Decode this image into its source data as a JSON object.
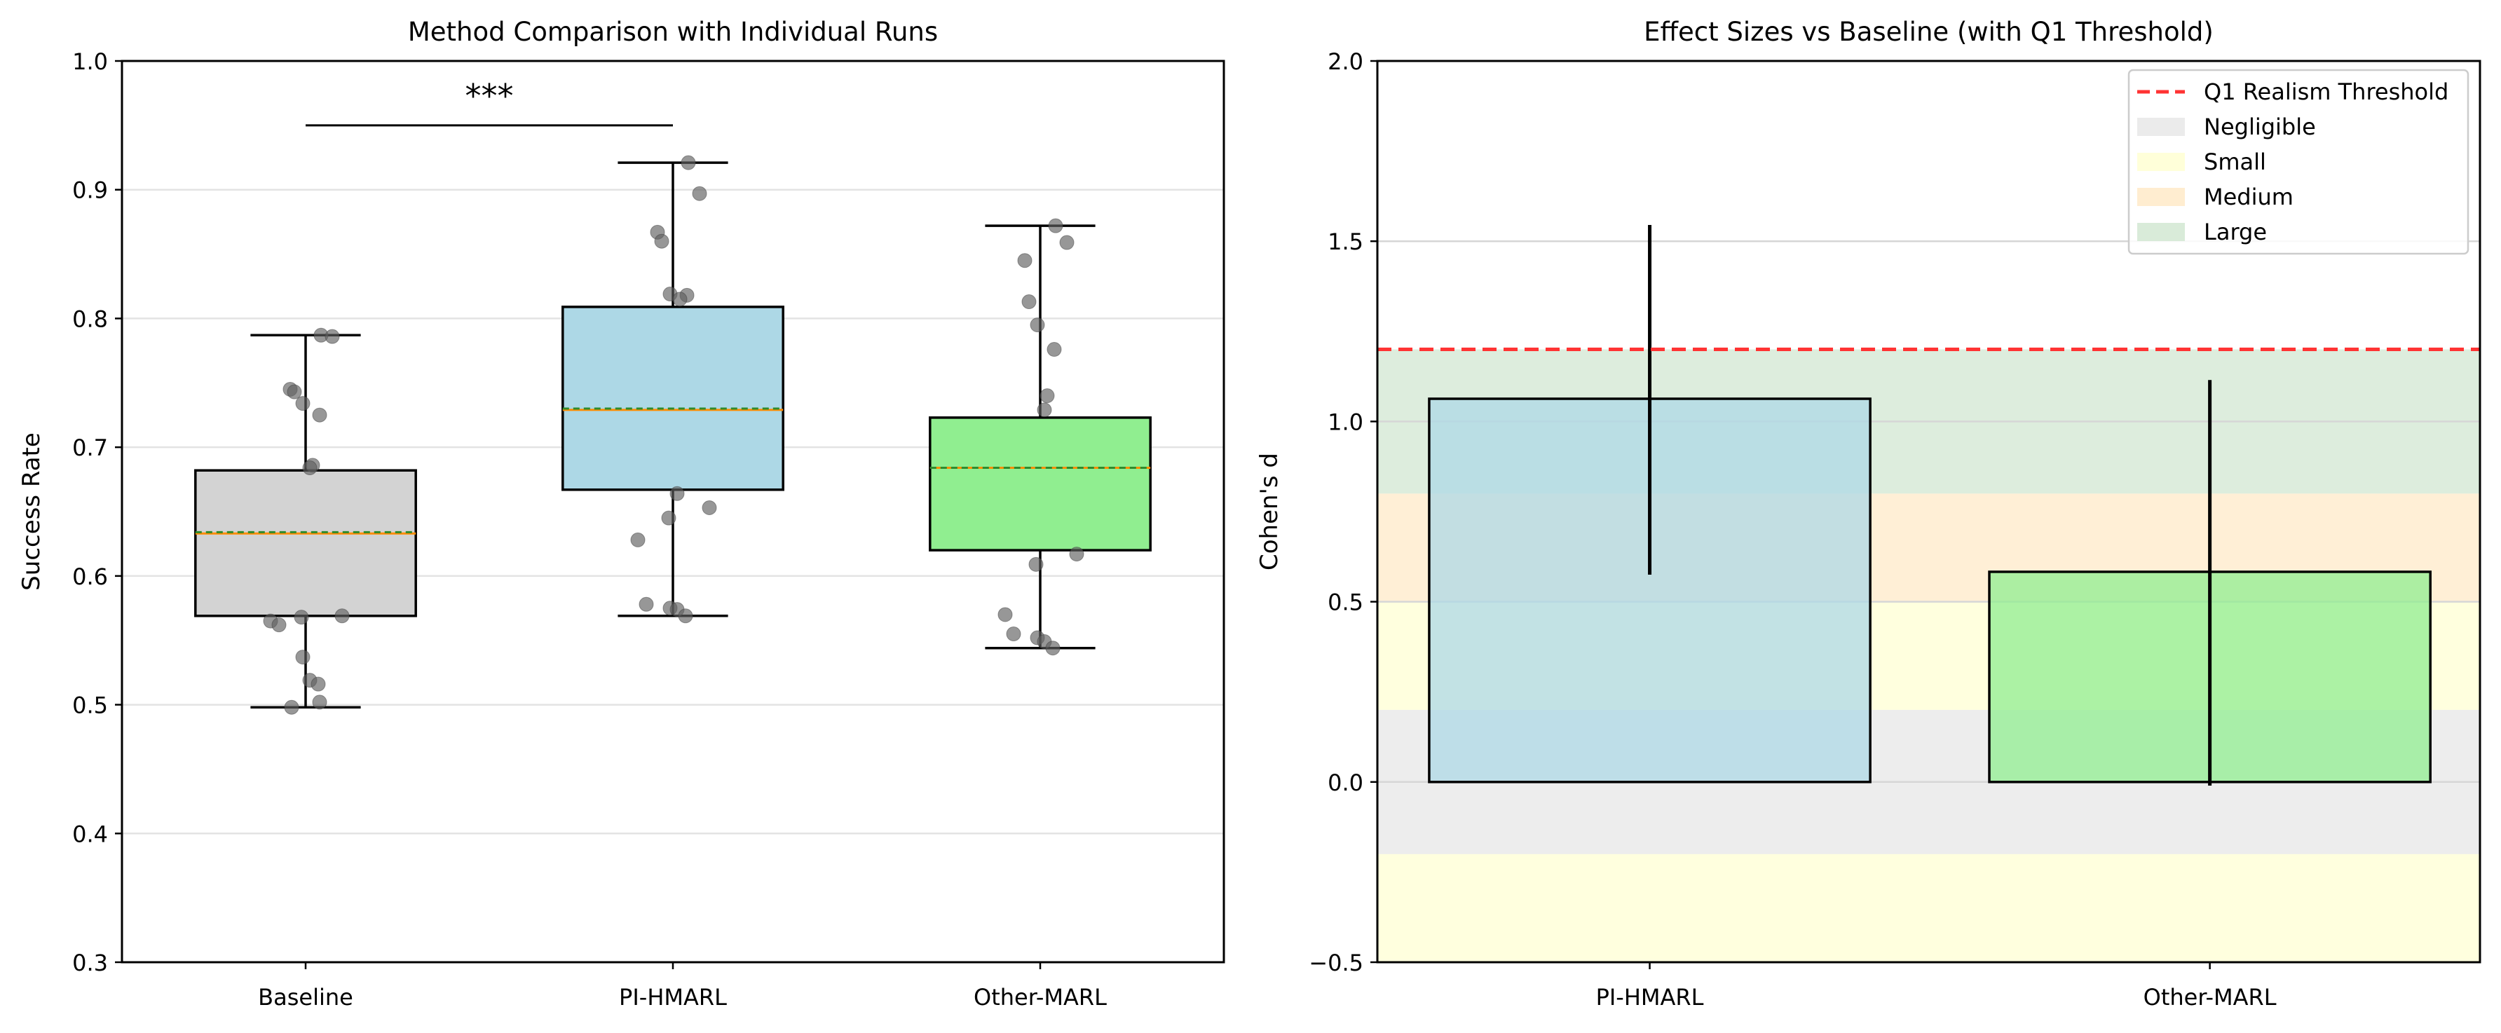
{
  "chart_data": [
    {
      "type": "box",
      "title": "Method Comparison with Individual Runs",
      "xlabel": "",
      "ylabel": "Success Rate",
      "ylim": [
        0.3,
        1.0
      ],
      "yticks": [
        "0.3",
        "0.4",
        "0.5",
        "0.6",
        "0.7",
        "0.8",
        "0.9",
        "1.0"
      ],
      "categories": [
        "Baseline",
        "PI-HMARL",
        "Other-MARL"
      ],
      "grid": "y",
      "significance": {
        "from": "Baseline",
        "to": "PI-HMARL",
        "label": "***",
        "y": 0.95
      },
      "boxes": [
        {
          "name": "Baseline",
          "color": "#d3d3d3",
          "whisker_low": 0.498,
          "q1": 0.569,
          "median": 0.633,
          "mean": 0.634,
          "q3": 0.682,
          "whisker_high": 0.787,
          "runs": [
            0.787,
            0.786,
            0.745,
            0.743,
            0.734,
            0.725,
            0.686,
            0.684,
            0.569,
            0.568,
            0.565,
            0.562,
            0.537,
            0.519,
            0.516,
            0.502,
            0.498
          ]
        },
        {
          "name": "PI-HMARL",
          "color": "#add8e6",
          "whisker_low": 0.569,
          "q1": 0.667,
          "median": 0.729,
          "mean": 0.73,
          "q3": 0.809,
          "whisker_high": 0.921,
          "runs": [
            0.921,
            0.897,
            0.867,
            0.86,
            0.819,
            0.818,
            0.815,
            0.664,
            0.653,
            0.645,
            0.628,
            0.578,
            0.575,
            0.574,
            0.569
          ]
        },
        {
          "name": "Other-MARL",
          "color": "#90ee90",
          "whisker_low": 0.544,
          "q1": 0.62,
          "median": 0.684,
          "mean": 0.684,
          "q3": 0.723,
          "whisker_high": 0.872,
          "runs": [
            0.872,
            0.859,
            0.845,
            0.813,
            0.795,
            0.776,
            0.74,
            0.729,
            0.617,
            0.609,
            0.57,
            0.555,
            0.552,
            0.549,
            0.544
          ]
        }
      ]
    },
    {
      "type": "bar",
      "title": "Effect Sizes vs Baseline (with Q1 Threshold)",
      "xlabel": "",
      "ylabel": "Cohen's d",
      "ylim": [
        -0.5,
        2.0
      ],
      "yticks": [
        "−0.5",
        "0.0",
        "0.5",
        "1.0",
        "1.5",
        "2.0"
      ],
      "categories": [
        "PI-HMARL",
        "Other-MARL"
      ],
      "values": [
        1.063,
        0.583
      ],
      "error_low": [
        0.575,
        -0.01
      ],
      "error_high": [
        1.545,
        1.115
      ],
      "bar_colors": [
        "#add8e6",
        "#90ee90"
      ],
      "threshold": {
        "label": "Q1 Realism Threshold",
        "value": 1.2,
        "color": "#ff3333"
      },
      "bands": [
        {
          "label": "Negligible",
          "range": [
            -0.2,
            0.2
          ],
          "color": "#e6e6e6"
        },
        {
          "label": "Small",
          "range": [
            0.2,
            0.5
          ],
          "color": "#ffffd0"
        },
        {
          "label": "Medium",
          "range": [
            0.5,
            0.8
          ],
          "color": "#ffe8c4"
        },
        {
          "label": "Large",
          "range": [
            0.8,
            1.2
          ],
          "color": "#cfe6cf"
        }
      ],
      "extra_bands": [
        {
          "range": [
            -0.5,
            -0.2
          ],
          "color": "#ffffd0"
        }
      ],
      "grid": "y",
      "legend_position": "top-right"
    }
  ]
}
